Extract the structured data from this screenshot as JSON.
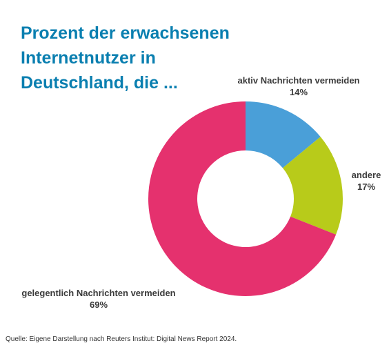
{
  "title_lines": [
    "Prozent der erwachsenen",
    "Internetnutzer in",
    "Deutschland, die ..."
  ],
  "chart_data": {
    "type": "pie",
    "title": "Prozent der erwachsenen Internetnutzer in Deutschland, die ...",
    "categories": [
      "aktiv Nachrichten vermeiden",
      "andere",
      "gelegentlich Nachrichten vermeiden"
    ],
    "values": [
      14,
      17,
      69
    ],
    "value_labels": [
      "14%",
      "17%",
      "69%"
    ],
    "colors": [
      "#4a9fd8",
      "#b8cb1a",
      "#e5316e"
    ],
    "donut": true
  },
  "source": "Quelle: Eigene Darstellung nach Reuters Institut: Digital News Report 2024."
}
